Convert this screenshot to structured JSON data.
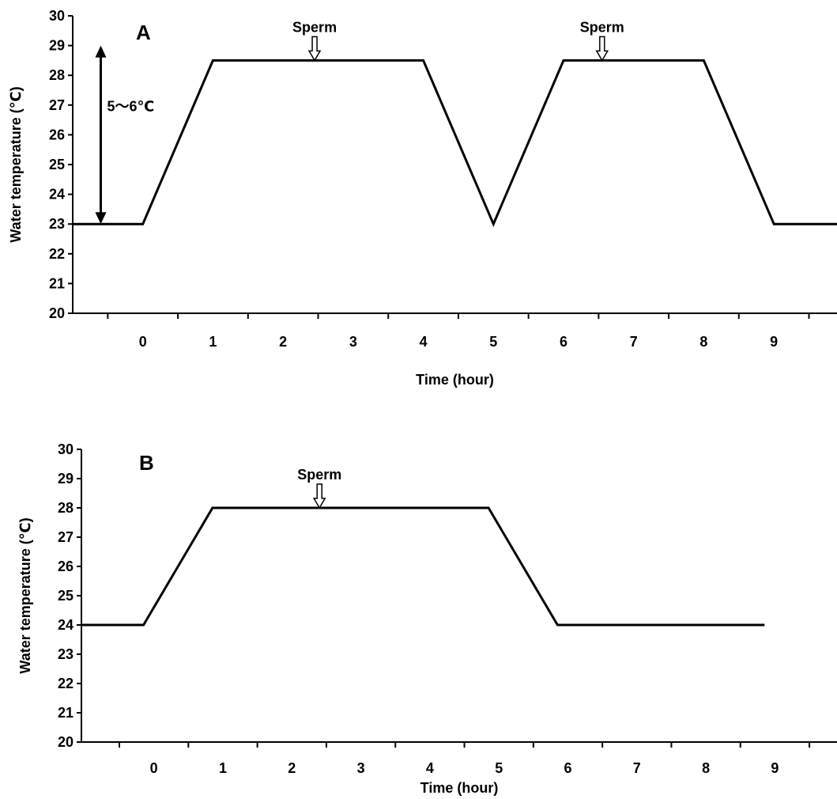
{
  "colors": {
    "line": "#000000",
    "background": "#ffffff",
    "arrow_fill": "#ffffff"
  },
  "chart_data": [
    {
      "type": "line",
      "panel_label": "A",
      "xlabel": "Time (hour)",
      "ylabel": "Water temperature (℃)",
      "xlim": [
        -1,
        9.9
      ],
      "ylim": [
        20,
        30
      ],
      "x_ticks": [
        0,
        1,
        2,
        3,
        4,
        5,
        6,
        7,
        8,
        9
      ],
      "y_ticks": [
        20,
        21,
        22,
        23,
        24,
        25,
        26,
        27,
        28,
        29,
        30
      ],
      "grid": false,
      "legend": "none",
      "series": [
        {
          "x": [
            -1,
            0,
            1,
            4,
            5,
            6,
            8,
            9,
            9.9
          ],
          "y": [
            23,
            23,
            28.5,
            28.5,
            23,
            28.5,
            28.5,
            23,
            23
          ]
        }
      ],
      "annotations": [
        {
          "type": "arrow-down",
          "text": "Sperm",
          "x": 2.45,
          "y": 28.5
        },
        {
          "type": "arrow-down",
          "text": "Sperm",
          "x": 6.55,
          "y": 28.5
        },
        {
          "type": "double-arrow",
          "text": "5～6℃",
          "x": -0.6,
          "y_from": 23,
          "y_to": 29
        }
      ]
    },
    {
      "type": "line",
      "panel_label": "B",
      "xlabel": "Time (hour)",
      "ylabel": "Water temperature (℃)",
      "xlim": [
        -1.05,
        9.9
      ],
      "ylim": [
        20,
        30
      ],
      "x_ticks": [
        0,
        1,
        2,
        3,
        4,
        5,
        6,
        7,
        8,
        9
      ],
      "y_ticks": [
        20,
        21,
        22,
        23,
        24,
        25,
        26,
        27,
        28,
        29,
        30
      ],
      "grid": false,
      "legend": "none",
      "series": [
        {
          "x": [
            -1.05,
            -0.15,
            0.85,
            4.85,
            5.85,
            8.85
          ],
          "y": [
            24,
            24,
            28,
            28,
            24,
            24
          ]
        }
      ],
      "annotations": [
        {
          "type": "arrow-down",
          "text": "Sperm",
          "x": 2.4,
          "y": 28
        }
      ]
    }
  ]
}
